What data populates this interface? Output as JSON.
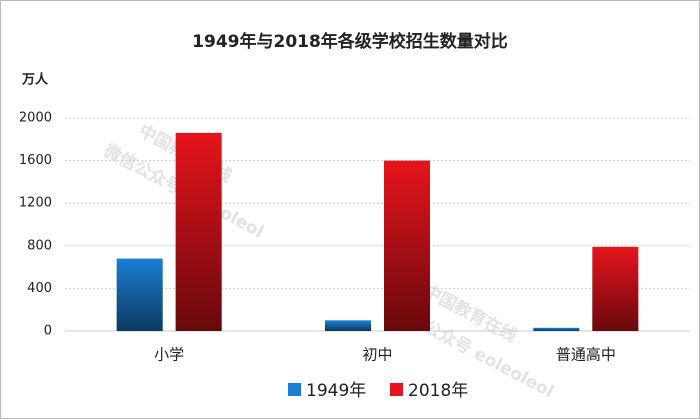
{
  "chart_data": {
    "type": "bar",
    "title": "1949年与2018年各级学校招生数量对比",
    "y_unit": "万人",
    "categories": [
      "小学",
      "初中",
      "普通高中"
    ],
    "series": [
      {
        "name": "1949年",
        "color": "#1a7fd4",
        "values": [
          680,
          100,
          30
        ]
      },
      {
        "name": "2018年",
        "color": "#e6141c",
        "values": [
          1860,
          1600,
          790
        ]
      }
    ],
    "ylim": [
      0,
      2000
    ],
    "yticks": [
      0,
      400,
      800,
      1200,
      1600,
      2000
    ],
    "grid": true,
    "legend": "bottom",
    "watermarks": [
      "中国教育在线",
      "微信公众号 eoleoleol",
      "中国教育在线",
      "微信公众号 eoleoleol"
    ]
  }
}
